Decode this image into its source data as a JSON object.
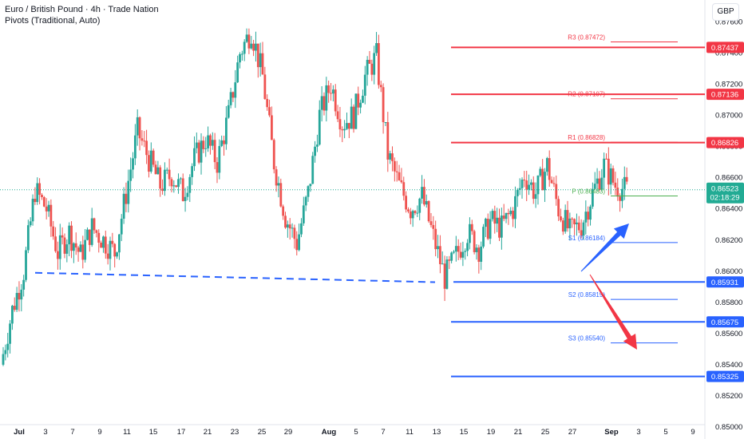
{
  "header": {
    "title": "Euro / British Pound · 4h · Trade Nation",
    "indicator": "Pivots (Traditional, Auto)"
  },
  "currency_button": "GBP",
  "colors": {
    "up": "#26a69a",
    "down": "#ef5350",
    "resistance": "#f23645",
    "support": "#2962ff",
    "pivot": "#4caf50",
    "current": "#22ab94"
  },
  "chart_data": {
    "type": "candlestick",
    "ylim": [
      0.85,
      0.877
    ],
    "y_ticks": [
      "0.87600",
      "0.87400",
      "0.87200",
      "0.87000",
      "0.86800",
      "0.86600",
      "0.86400",
      "0.86200",
      "0.86000",
      "0.85800",
      "0.85600",
      "0.85400",
      "0.85200",
      "0.85000"
    ],
    "x_ticks": [
      "Jul",
      "3",
      "7",
      "9",
      "11",
      "15",
      "17",
      "21",
      "23",
      "25",
      "29",
      "Aug",
      "5",
      "7",
      "11",
      "13",
      "15",
      "19",
      "21",
      "25",
      "27",
      "Sep",
      "3",
      "5",
      "9"
    ],
    "x_bold": [
      "Jul",
      "Aug",
      "Sep"
    ],
    "close_path": [
      [
        "Jul 1",
        0.854
      ],
      [
        "Jul 2",
        0.8575
      ],
      [
        "Jul 3",
        0.86
      ],
      [
        "Jul 3b",
        0.8652
      ],
      [
        "Jul 4",
        0.864
      ],
      [
        "Jul 5",
        0.8612
      ],
      [
        "Jul 8",
        0.8625
      ],
      [
        "Jul 9",
        0.861
      ],
      [
        "Jul 10",
        0.8628
      ],
      [
        "Jul 11",
        0.862
      ],
      [
        "Jul 12",
        0.8612
      ],
      [
        "Jul 15",
        0.865
      ],
      [
        "Jul 16",
        0.869
      ],
      [
        "Jul 17",
        0.8672
      ],
      [
        "Jul 18",
        0.8655
      ],
      [
        "Jul 19",
        0.8662
      ],
      [
        "Jul 22",
        0.865
      ],
      [
        "Jul 23",
        0.8672
      ],
      [
        "Jul 24",
        0.8685
      ],
      [
        "Jul 25",
        0.867
      ],
      [
        "Jul 26",
        0.87
      ],
      [
        "Jul 29",
        0.874
      ],
      [
        "Jul 30",
        0.8755
      ],
      [
        "Jul 31",
        0.8725
      ],
      [
        "Aug 1",
        0.867
      ],
      [
        "Aug 2",
        0.8635
      ],
      [
        "Aug 5",
        0.8618
      ],
      [
        "Aug 6",
        0.865
      ],
      [
        "Aug 7",
        0.87
      ],
      [
        "Aug 8",
        0.872
      ],
      [
        "Aug 9",
        0.8695
      ],
      [
        "Aug 12",
        0.87
      ],
      [
        "Aug 13",
        0.8725
      ],
      [
        "Aug 14",
        0.8738
      ],
      [
        "Aug 15",
        0.8675
      ],
      [
        "Aug 16",
        0.8655
      ],
      [
        "Aug 19",
        0.864
      ],
      [
        "Aug 20",
        0.8648
      ],
      [
        "Aug 21",
        0.8622
      ],
      [
        "Aug 22",
        0.8596
      ],
      [
        "Aug 23",
        0.861
      ],
      [
        "Aug 26",
        0.8625
      ],
      [
        "Aug 27",
        0.8615
      ],
      [
        "Aug 28",
        0.8632
      ],
      [
        "Aug 29",
        0.8628
      ],
      [
        "Aug 30",
        0.864
      ],
      [
        "Sep 2",
        0.8662
      ],
      [
        "Sep 3",
        0.865
      ],
      [
        "Sep 4",
        0.8668
      ],
      [
        "Sep 5",
        0.864
      ],
      [
        "Sep 6",
        0.8625
      ],
      [
        "Sep 9",
        0.863
      ],
      [
        "Sep 10",
        0.865
      ],
      [
        "Sep 11",
        0.8668
      ],
      [
        "Sep 12",
        0.8655
      ],
      [
        "Sep 13",
        0.8652
      ]
    ],
    "current_price": "0.86523",
    "countdown": "02:18:29",
    "pivots": [
      {
        "name": "R3",
        "label": "R3 (0.87472)",
        "value": 0.87472,
        "color": "#f23645"
      },
      {
        "name": "R2",
        "label": "R2 (0.87107)",
        "value": 0.87107,
        "color": "#f23645"
      },
      {
        "name": "R1",
        "label": "R1 (0.86828)",
        "value": 0.86828,
        "color": "#f23645"
      },
      {
        "name": "P",
        "label": "P (0.86483)",
        "value": 0.86483,
        "color": "#4caf50"
      },
      {
        "name": "S1",
        "label": "S1 (0.86184)",
        "value": 0.86184,
        "color": "#2962ff"
      },
      {
        "name": "S2",
        "label": "S2 (0.85819)",
        "value": 0.85819,
        "color": "#2962ff"
      },
      {
        "name": "S3",
        "label": "S3 (0.85540)",
        "value": 0.8554,
        "color": "#2962ff"
      }
    ],
    "levels": [
      {
        "value": 0.87437,
        "label": "0.87437",
        "kind": "resistance"
      },
      {
        "value": 0.87136,
        "label": "0.87136",
        "kind": "resistance"
      },
      {
        "value": 0.86826,
        "label": "0.86826",
        "kind": "resistance"
      },
      {
        "value": 0.85931,
        "label": "0.85931",
        "kind": "support"
      },
      {
        "value": 0.85675,
        "label": "0.85675",
        "kind": "support"
      },
      {
        "value": 0.85325,
        "label": "0.85325",
        "kind": "support"
      }
    ],
    "trendline": {
      "start": 0.8599,
      "end": 0.8593,
      "style": "dashed"
    },
    "arrows": [
      {
        "direction": "up",
        "color": "#2962ff"
      },
      {
        "direction": "down",
        "color": "#f23645"
      }
    ]
  }
}
